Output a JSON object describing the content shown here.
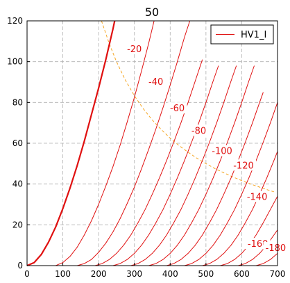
{
  "chart_data": {
    "type": "line",
    "title": "50",
    "xlim": [
      0,
      700
    ],
    "ylim": [
      0,
      120
    ],
    "x_ticks": [
      0,
      100,
      200,
      300,
      400,
      500,
      600,
      700
    ],
    "y_ticks": [
      0,
      20,
      40,
      60,
      80,
      100,
      120
    ],
    "grid": true,
    "legend": {
      "position": "top-right",
      "entries": [
        "HV1_I"
      ]
    },
    "colors": {
      "curve": "#e01010",
      "dissipation": "#f5a623",
      "grid": "#b0b0b0"
    },
    "series": [
      {
        "name": "HV1_I",
        "label": "",
        "bold": true,
        "points": [
          [
            0,
            0
          ],
          [
            20,
            1.5
          ],
          [
            40,
            5.5
          ],
          [
            60,
            11.5
          ],
          [
            80,
            19
          ],
          [
            100,
            28
          ],
          [
            120,
            38
          ],
          [
            140,
            49
          ],
          [
            160,
            61
          ],
          [
            180,
            74
          ],
          [
            200,
            87
          ],
          [
            220,
            101
          ],
          [
            240,
            116
          ],
          [
            245,
            120
          ]
        ]
      },
      {
        "label": "-20",
        "points": [
          [
            80,
            0
          ],
          [
            100,
            1.5
          ],
          [
            120,
            4.5
          ],
          [
            140,
            9
          ],
          [
            160,
            15
          ],
          [
            180,
            22
          ],
          [
            200,
            30
          ],
          [
            220,
            39
          ],
          [
            240,
            48.5
          ],
          [
            260,
            59
          ],
          [
            280,
            70.5
          ],
          [
            300,
            82.5
          ],
          [
            320,
            95.5
          ],
          [
            340,
            109
          ],
          [
            355,
            120
          ]
        ]
      },
      {
        "label": "-40",
        "points": [
          [
            140,
            0
          ],
          [
            160,
            1
          ],
          [
            180,
            3
          ],
          [
            200,
            6.5
          ],
          [
            220,
            11
          ],
          [
            240,
            16.5
          ],
          [
            260,
            23
          ],
          [
            280,
            30.5
          ],
          [
            300,
            38.5
          ],
          [
            320,
            47.5
          ],
          [
            340,
            57
          ],
          [
            360,
            67
          ],
          [
            380,
            77.5
          ],
          [
            400,
            88.5
          ],
          [
            420,
            100
          ],
          [
            440,
            112
          ],
          [
            455,
            120
          ]
        ]
      },
      {
        "label": "-60",
        "points": [
          [
            190,
            0
          ],
          [
            210,
            1
          ],
          [
            230,
            3
          ],
          [
            250,
            6
          ],
          [
            270,
            10
          ],
          [
            290,
            15
          ],
          [
            310,
            21
          ],
          [
            330,
            27.5
          ],
          [
            350,
            35
          ],
          [
            370,
            43
          ],
          [
            390,
            51.5
          ],
          [
            410,
            60.5
          ],
          [
            430,
            70
          ],
          [
            450,
            80
          ],
          [
            470,
            90.5
          ],
          [
            490,
            101
          ]
        ]
      },
      {
        "label": "-80",
        "points": [
          [
            240,
            0
          ],
          [
            260,
            1
          ],
          [
            280,
            3
          ],
          [
            300,
            6
          ],
          [
            320,
            10
          ],
          [
            340,
            15
          ],
          [
            360,
            21
          ],
          [
            380,
            27.5
          ],
          [
            400,
            35
          ],
          [
            420,
            43
          ],
          [
            440,
            51.5
          ],
          [
            460,
            60.5
          ],
          [
            480,
            70
          ],
          [
            500,
            80
          ],
          [
            520,
            90.5
          ],
          [
            535,
            98
          ]
        ]
      },
      {
        "label": "-100",
        "points": [
          [
            290,
            0
          ],
          [
            310,
            1
          ],
          [
            330,
            3
          ],
          [
            350,
            6
          ],
          [
            370,
            10
          ],
          [
            390,
            15
          ],
          [
            410,
            21
          ],
          [
            430,
            27.5
          ],
          [
            450,
            35
          ],
          [
            470,
            43
          ],
          [
            490,
            51.5
          ],
          [
            510,
            60.5
          ],
          [
            530,
            70
          ],
          [
            550,
            80
          ],
          [
            570,
            90.5
          ],
          [
            585,
            98
          ]
        ]
      },
      {
        "label": "-120",
        "points": [
          [
            340,
            0
          ],
          [
            360,
            1
          ],
          [
            380,
            3
          ],
          [
            400,
            6
          ],
          [
            420,
            10
          ],
          [
            440,
            15
          ],
          [
            460,
            21
          ],
          [
            480,
            27.5
          ],
          [
            500,
            35
          ],
          [
            520,
            43
          ],
          [
            540,
            51.5
          ],
          [
            560,
            60.5
          ],
          [
            580,
            70
          ],
          [
            600,
            80
          ],
          [
            620,
            90.5
          ],
          [
            635,
            98
          ]
        ]
      },
      {
        "label": "-140",
        "points": [
          [
            390,
            0
          ],
          [
            410,
            1
          ],
          [
            430,
            3
          ],
          [
            450,
            6
          ],
          [
            470,
            10
          ],
          [
            490,
            15
          ],
          [
            510,
            21
          ],
          [
            530,
            27.5
          ],
          [
            550,
            35
          ],
          [
            570,
            43
          ],
          [
            590,
            51.5
          ],
          [
            610,
            60.5
          ],
          [
            630,
            70
          ],
          [
            650,
            80
          ],
          [
            660,
            85
          ]
        ]
      },
      {
        "label": "-160",
        "points": [
          [
            440,
            0
          ],
          [
            460,
            1
          ],
          [
            480,
            3
          ],
          [
            500,
            6
          ],
          [
            520,
            10
          ],
          [
            540,
            15
          ],
          [
            560,
            21
          ],
          [
            580,
            27.5
          ],
          [
            600,
            35
          ],
          [
            620,
            43
          ],
          [
            640,
            51.5
          ],
          [
            660,
            60.5
          ],
          [
            680,
            70
          ],
          [
            700,
            80
          ]
        ]
      },
      {
        "label": "-180",
        "points": [
          [
            490,
            0
          ],
          [
            510,
            1
          ],
          [
            530,
            3
          ],
          [
            550,
            6
          ],
          [
            570,
            10
          ],
          [
            590,
            15
          ],
          [
            610,
            21
          ],
          [
            630,
            27.5
          ],
          [
            650,
            35
          ],
          [
            670,
            43
          ],
          [
            690,
            51.5
          ],
          [
            700,
            56
          ]
        ]
      },
      {
        "label": "",
        "points": [
          [
            540,
            0
          ],
          [
            560,
            1
          ],
          [
            580,
            3
          ],
          [
            600,
            6
          ],
          [
            620,
            10
          ],
          [
            640,
            15
          ],
          [
            660,
            21
          ],
          [
            680,
            27.5
          ],
          [
            700,
            34
          ]
        ]
      },
      {
        "label": "",
        "points": [
          [
            590,
            0
          ],
          [
            610,
            1
          ],
          [
            630,
            3
          ],
          [
            650,
            6
          ],
          [
            670,
            10
          ],
          [
            690,
            15
          ],
          [
            700,
            17.5
          ]
        ]
      },
      {
        "label": "",
        "points": [
          [
            640,
            0
          ],
          [
            660,
            1
          ],
          [
            680,
            3
          ],
          [
            700,
            6
          ]
        ]
      }
    ],
    "dissipation_curve": {
      "points": [
        [
          208,
          120
        ],
        [
          230,
          108.7
        ],
        [
          250,
          100
        ],
        [
          275,
          90.9
        ],
        [
          300,
          83.3
        ],
        [
          325,
          76.9
        ],
        [
          350,
          71.4
        ],
        [
          375,
          66.7
        ],
        [
          400,
          62.5
        ],
        [
          425,
          58.8
        ],
        [
          450,
          55.6
        ],
        [
          475,
          52.6
        ],
        [
          500,
          50
        ],
        [
          525,
          47.6
        ],
        [
          550,
          45.5
        ],
        [
          575,
          43.5
        ],
        [
          600,
          41.7
        ],
        [
          625,
          40
        ],
        [
          650,
          38.5
        ],
        [
          675,
          37
        ],
        [
          690,
          36.2
        ]
      ]
    },
    "annotations": [
      {
        "text": "-20",
        "x": 300,
        "y": 106
      },
      {
        "text": "-40",
        "x": 360,
        "y": 90
      },
      {
        "text": "-60",
        "x": 420,
        "y": 77
      },
      {
        "text": "-80",
        "x": 480,
        "y": 66
      },
      {
        "text": "-100",
        "x": 545,
        "y": 56
      },
      {
        "text": "-120",
        "x": 605,
        "y": 49
      },
      {
        "text": "-140",
        "x": 643,
        "y": 33.5
      },
      {
        "text": "-160",
        "x": 645,
        "y": 10.5
      },
      {
        "text": "-180",
        "x": 695,
        "y": 8.5
      }
    ]
  }
}
